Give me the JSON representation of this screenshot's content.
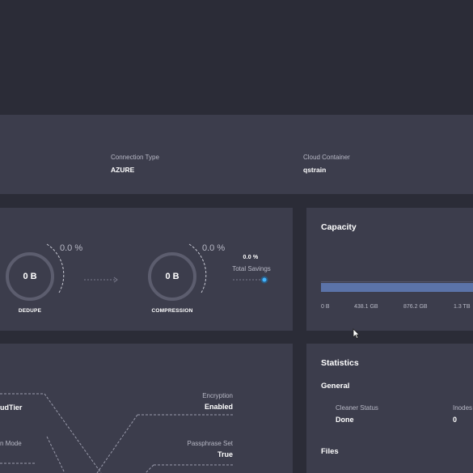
{
  "connection": {
    "type_label": "Connection Type",
    "type_value": "AZURE",
    "container_label": "Cloud Container",
    "container_value": "qstrain"
  },
  "savings": {
    "dedupe": {
      "value": "0 B",
      "percent": "0.0 %",
      "name": "DEDUPE"
    },
    "compression": {
      "value": "0 B",
      "percent": "0.0 %",
      "name": "COMPRESSION"
    },
    "total": {
      "percent": "0.0 %",
      "label": "Total Savings"
    }
  },
  "capacity": {
    "title": "Capacity",
    "ticks": [
      "0 B",
      "438.1 GB",
      "876.2 GB",
      "1.3 TB"
    ],
    "bar_color": "#5b73a8"
  },
  "details": {
    "left_top_value": "udTier",
    "left_mid_label": "n Mode",
    "encryption_label": "Encryption",
    "encryption_value": "Enabled",
    "passphrase_label": "Passphrase Set",
    "passphrase_value": "True"
  },
  "statistics": {
    "title": "Statistics",
    "general_heading": "General",
    "cleaner_label": "Cleaner Status",
    "cleaner_value": "Done",
    "inodes_label": "Inodes",
    "inodes_value": "0",
    "files_heading": "Files"
  }
}
